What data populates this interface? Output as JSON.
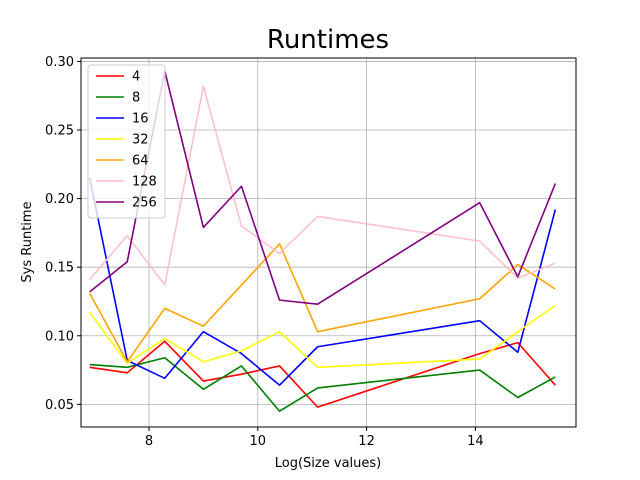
{
  "chart_data": {
    "type": "line",
    "title": "Runtimes",
    "xlabel": "Log(Size values)",
    "ylabel": "Sys Runtime",
    "xlim": [
      6.75,
      15.85
    ],
    "ylim": [
      0.0335,
      0.3025
    ],
    "xticks": [
      8,
      10,
      12,
      14
    ],
    "yticks": [
      0.05,
      0.1,
      0.15,
      0.2,
      0.25,
      0.3
    ],
    "ytick_labels": [
      "0.05",
      "0.10",
      "0.15",
      "0.20",
      "0.25",
      "0.30"
    ],
    "grid": true,
    "legend_position": "top-left",
    "x": [
      6.91,
      7.6,
      8.29,
      9.0,
      9.7,
      10.4,
      11.1,
      14.08,
      14.78,
      15.47
    ],
    "series": [
      {
        "name": "4",
        "color": "#ff0000",
        "values": [
          0.077,
          0.073,
          0.096,
          0.067,
          0.072,
          0.078,
          0.048,
          0.087,
          0.095,
          0.064
        ]
      },
      {
        "name": "8",
        "color": "#008000",
        "values": [
          0.079,
          0.077,
          0.084,
          0.061,
          0.078,
          0.045,
          0.062,
          0.075,
          0.055,
          0.07
        ]
      },
      {
        "name": "16",
        "color": "#0000ff",
        "values": [
          0.215,
          0.082,
          0.069,
          0.103,
          0.087,
          0.064,
          0.092,
          0.111,
          0.088,
          0.192
        ]
      },
      {
        "name": "32",
        "color": "#ffff00",
        "values": [
          0.117,
          0.08,
          0.098,
          0.081,
          0.089,
          0.103,
          0.077,
          0.083,
          0.103,
          0.122
        ]
      },
      {
        "name": "64",
        "color": "#ffa500",
        "values": [
          0.131,
          0.081,
          0.12,
          0.107,
          0.137,
          0.167,
          0.103,
          0.127,
          0.152,
          0.134
        ]
      },
      {
        "name": "128",
        "color": "#ffc0cb",
        "values": [
          0.141,
          0.173,
          0.137,
          0.282,
          0.18,
          0.16,
          0.187,
          0.169,
          0.142,
          0.153
        ]
      },
      {
        "name": "256",
        "color": "#800080",
        "values": [
          0.132,
          0.154,
          0.293,
          0.179,
          0.209,
          0.126,
          0.123,
          0.197,
          0.143,
          0.211
        ]
      }
    ]
  }
}
